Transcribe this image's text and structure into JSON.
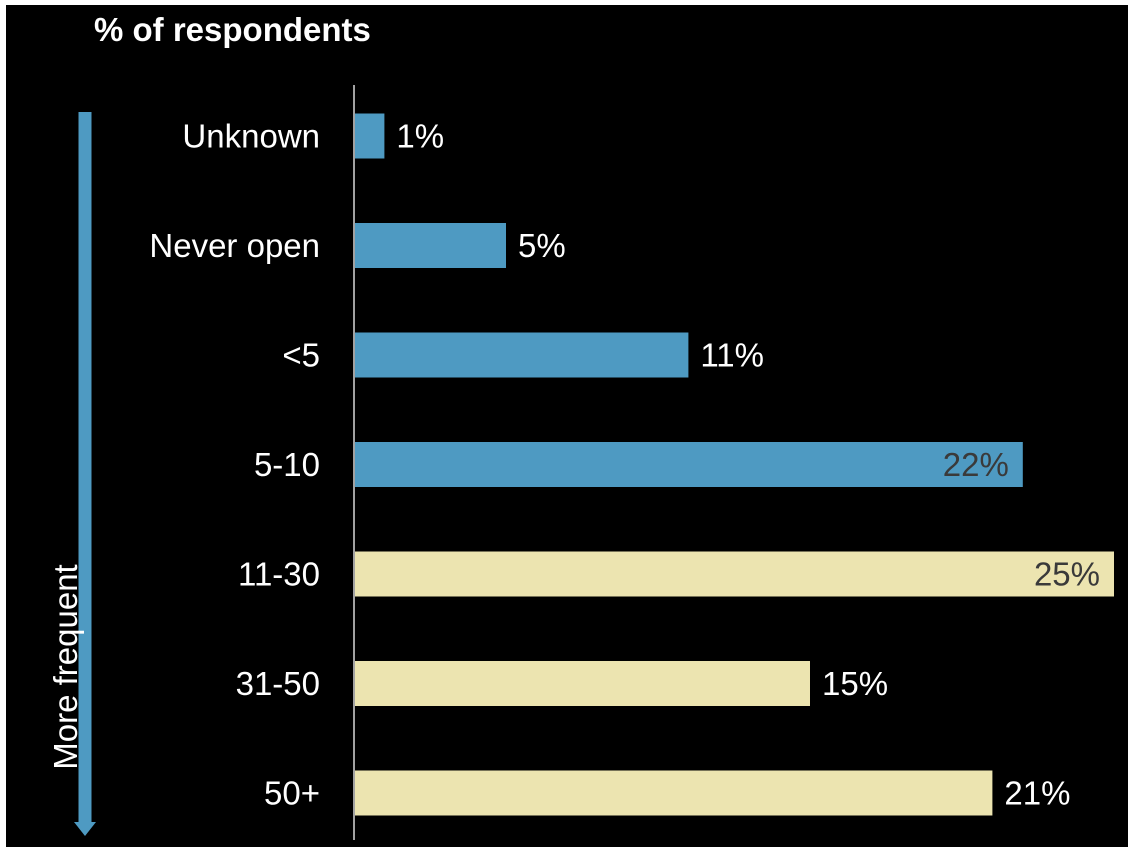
{
  "colors": {
    "background": "#000000",
    "frame": "#ffffff",
    "text": "#ffffff",
    "axis_line": "#d8d8d8",
    "arrow": "#4e9ac2",
    "bar_infrequent": "#4e9ac2",
    "bar_frequent": "#ece4b0",
    "label_on_bar": "#3a3a3a"
  },
  "side_arrow": {
    "label": "More frequent",
    "direction": "down"
  },
  "chart_data": {
    "type": "bar",
    "orientation": "horizontal",
    "title": "% of respondents",
    "xlabel": "",
    "ylabel": "",
    "categories": [
      "Unknown",
      "Never open",
      "<5",
      "5-10",
      "11-30",
      "31-50",
      "50+"
    ],
    "values": [
      1,
      5,
      11,
      22,
      25,
      15,
      21
    ],
    "value_labels": [
      "1%",
      "5%",
      "11%",
      "22%",
      "25%",
      "15%",
      "21%"
    ],
    "color_groups": [
      "infrequent",
      "infrequent",
      "infrequent",
      "infrequent",
      "frequent",
      "frequent",
      "frequent"
    ],
    "xlim": [
      0,
      25
    ],
    "grid": false,
    "legend": "none"
  }
}
